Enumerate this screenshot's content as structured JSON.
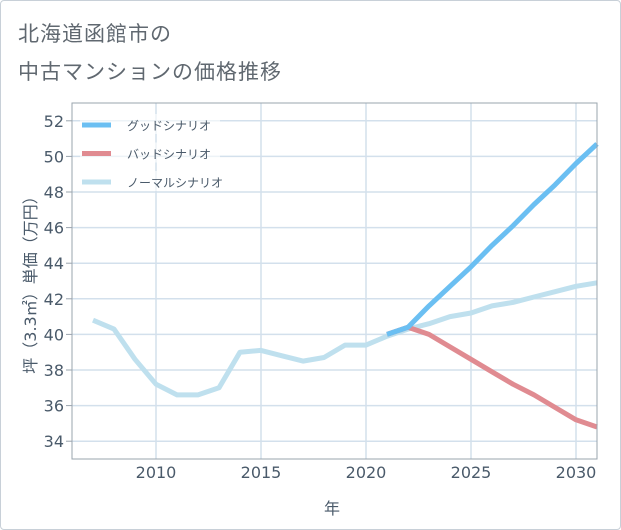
{
  "chart_data": {
    "type": "line",
    "title_lines": [
      "北海道函館市の",
      "中古マンションの価格推移"
    ],
    "xlabel": "年",
    "ylabel": "坪（3.3㎡）単価（万円）",
    "xlim": [
      2006,
      2031
    ],
    "ylim": [
      33,
      53
    ],
    "xticks": [
      2010,
      2015,
      2020,
      2025,
      2030
    ],
    "yticks": [
      34,
      36,
      38,
      40,
      42,
      44,
      46,
      48,
      50,
      52
    ],
    "grid": true,
    "legend_position": "top-left",
    "series": [
      {
        "name": "グッドシナリオ",
        "color": "#6bbff2",
        "x": [
          2021,
          2022,
          2023,
          2024,
          2025,
          2026,
          2027,
          2028,
          2029,
          2030,
          2031
        ],
        "y": [
          40.0,
          40.4,
          41.6,
          42.7,
          43.8,
          45.0,
          46.1,
          47.3,
          48.4,
          49.6,
          50.7
        ]
      },
      {
        "name": "バッドシナリオ",
        "color": "#e08b91",
        "x": [
          2021,
          2022,
          2023,
          2024,
          2025,
          2026,
          2027,
          2028,
          2029,
          2030,
          2031
        ],
        "y": [
          40.0,
          40.4,
          40.0,
          39.3,
          38.6,
          37.9,
          37.2,
          36.6,
          35.9,
          35.2,
          34.8
        ]
      },
      {
        "name": "ノーマルシナリオ",
        "color": "#bfe0ee",
        "x": [
          2007,
          2008,
          2009,
          2010,
          2011,
          2012,
          2013,
          2014,
          2015,
          2016,
          2017,
          2018,
          2019,
          2020,
          2021,
          2022,
          2023,
          2024,
          2025,
          2026,
          2027,
          2028,
          2029,
          2030,
          2031
        ],
        "y": [
          40.8,
          40.3,
          38.6,
          37.2,
          36.6,
          36.6,
          37.0,
          39.0,
          39.1,
          38.8,
          38.5,
          38.7,
          39.4,
          39.4,
          39.9,
          40.3,
          40.6,
          41.0,
          41.2,
          41.6,
          41.8,
          42.1,
          42.4,
          42.7,
          42.9
        ]
      }
    ]
  }
}
